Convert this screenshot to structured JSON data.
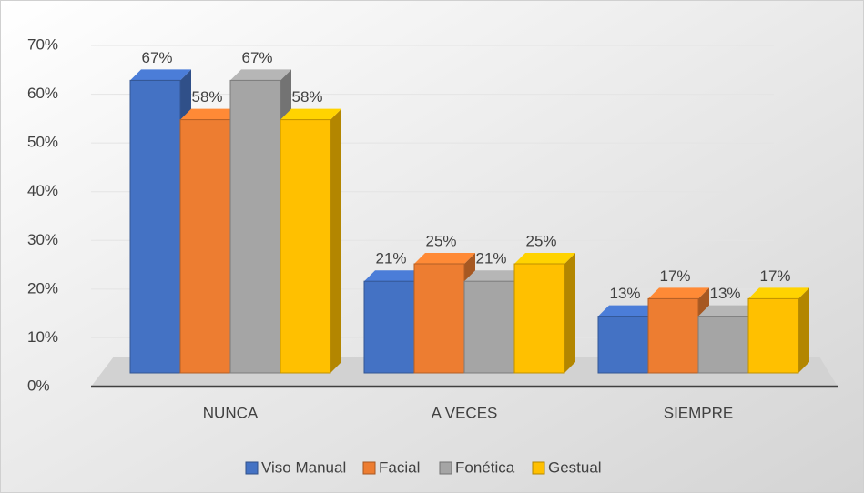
{
  "chart_data": {
    "type": "bar3d",
    "categories": [
      "NUNCA",
      "A VECES",
      "SIEMPRE"
    ],
    "series": [
      {
        "name": "Viso Manual",
        "color": "#4472c4",
        "values": [
          67,
          21,
          13
        ],
        "value_labels": [
          "67%",
          "21%",
          "13%"
        ]
      },
      {
        "name": "Facial",
        "color": "#ed7d31",
        "values": [
          58,
          25,
          17
        ],
        "value_labels": [
          "58%",
          "25%",
          "17%"
        ]
      },
      {
        "name": "Fonética",
        "color": "#a5a5a5",
        "values": [
          67,
          21,
          13
        ],
        "value_labels": [
          "67%",
          "21%",
          "13%"
        ]
      },
      {
        "name": "Gestual",
        "color": "#ffc000",
        "values": [
          58,
          25,
          17
        ],
        "value_labels": [
          "58%",
          "25%",
          "17%"
        ]
      }
    ],
    "ylim": [
      0,
      70
    ],
    "yticks": [
      {
        "value": 0,
        "label": "0%"
      },
      {
        "value": 10,
        "label": "10%"
      },
      {
        "value": 20,
        "label": "20%"
      },
      {
        "value": 30,
        "label": "30%"
      },
      {
        "value": 40,
        "label": "40%"
      },
      {
        "value": 50,
        "label": "50%"
      },
      {
        "value": 60,
        "label": "60%"
      },
      {
        "value": 70,
        "label": "70%"
      }
    ],
    "grid": true,
    "legend": "bottom"
  }
}
